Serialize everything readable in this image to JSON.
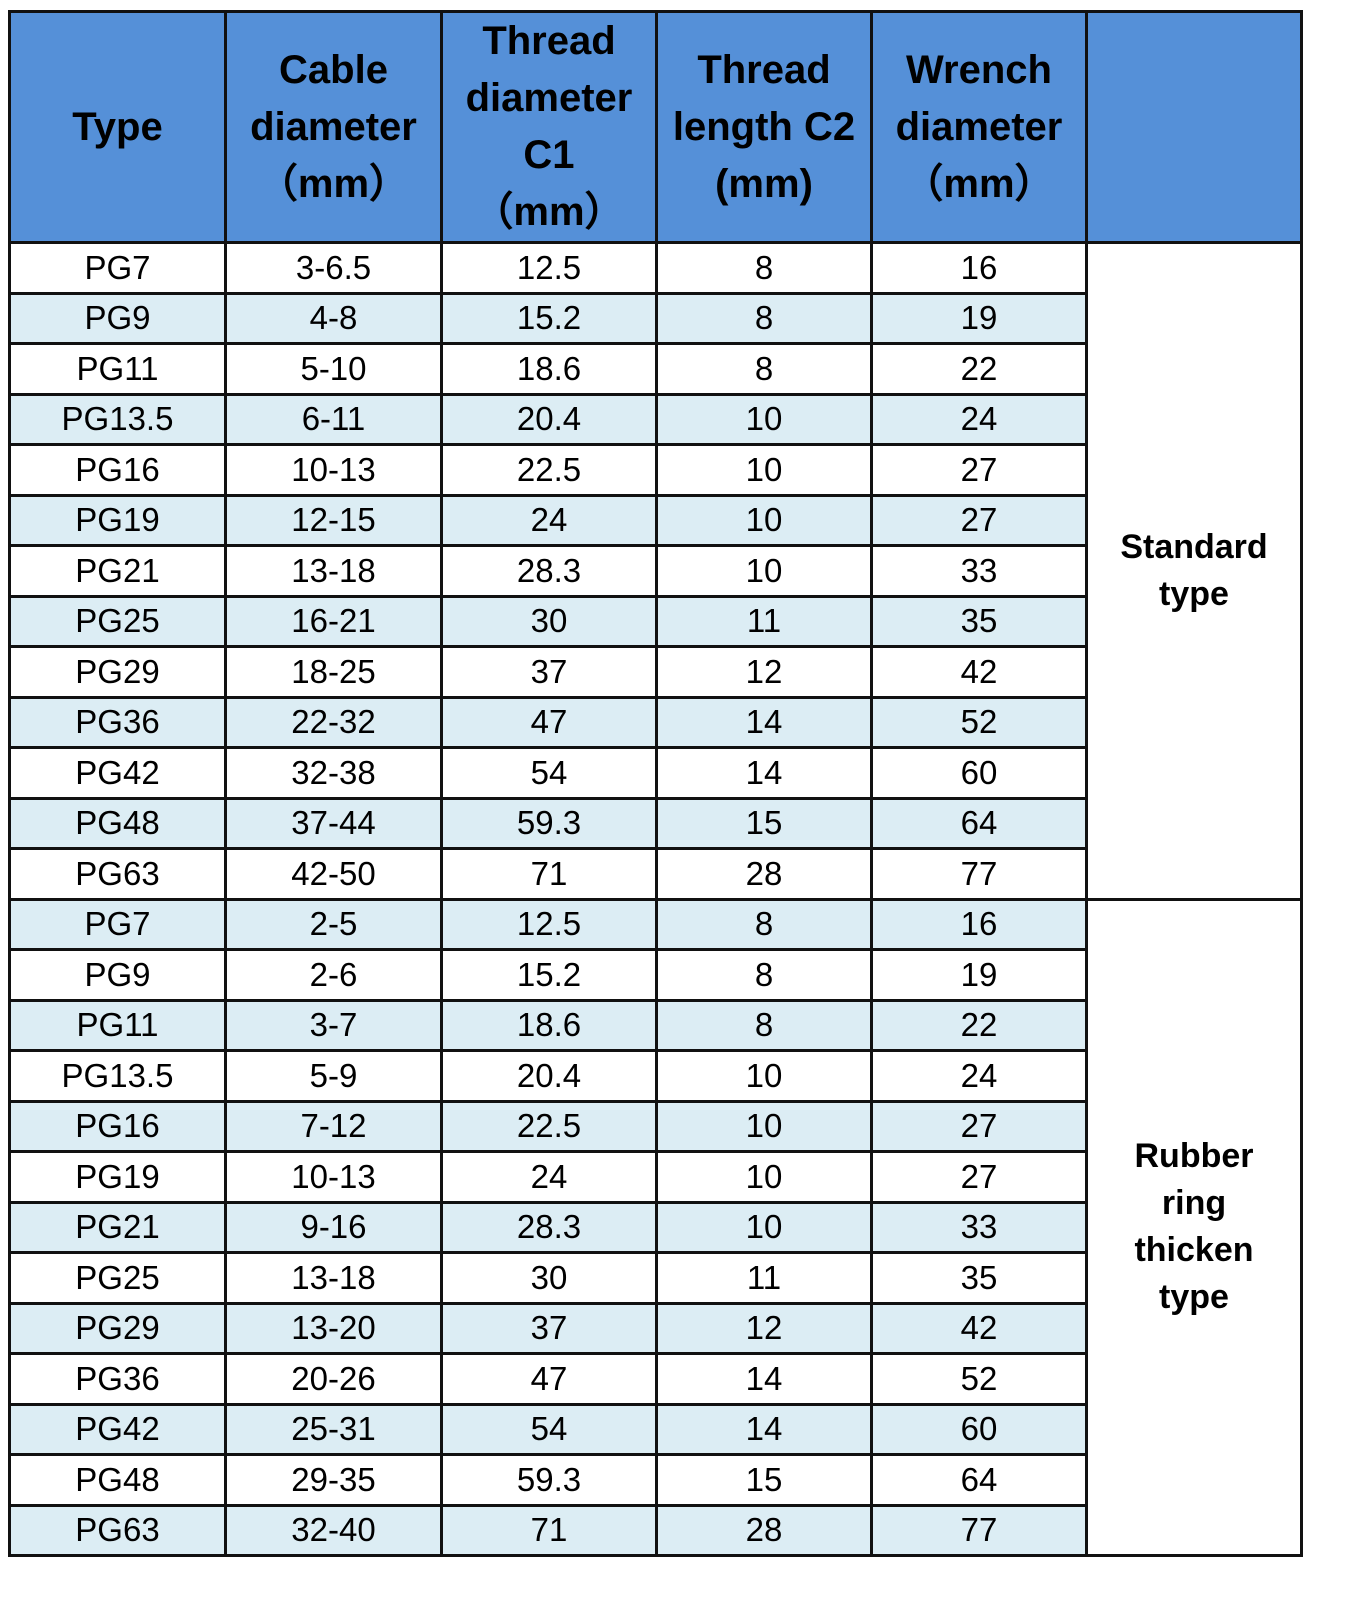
{
  "table": {
    "header": [
      [
        "Type"
      ],
      [
        "Cable",
        "diameter",
        "（mm）"
      ],
      [
        "Thread",
        "diameter",
        "C1",
        "（mm）"
      ],
      [
        "Thread",
        "length C2",
        "(mm)"
      ],
      [
        "Wrench",
        "diameter",
        "（mm）"
      ]
    ],
    "groups": [
      {
        "label": [
          "Standard",
          "type"
        ],
        "rows": [
          [
            "PG7",
            "3-6.5",
            "12.5",
            "8",
            "16"
          ],
          [
            "PG9",
            "4-8",
            "15.2",
            "8",
            "19"
          ],
          [
            "PG11",
            "5-10",
            "18.6",
            "8",
            "22"
          ],
          [
            "PG13.5",
            "6-11",
            "20.4",
            "10",
            "24"
          ],
          [
            "PG16",
            "10-13",
            "22.5",
            "10",
            "27"
          ],
          [
            "PG19",
            "12-15",
            "24",
            "10",
            "27"
          ],
          [
            "PG21",
            "13-18",
            "28.3",
            "10",
            "33"
          ],
          [
            "PG25",
            "16-21",
            "30",
            "11",
            "35"
          ],
          [
            "PG29",
            "18-25",
            "37",
            "12",
            "42"
          ],
          [
            "PG36",
            "22-32",
            "47",
            "14",
            "52"
          ],
          [
            "PG42",
            "32-38",
            "54",
            "14",
            "60"
          ],
          [
            "PG48",
            "37-44",
            "59.3",
            "15",
            "64"
          ],
          [
            "PG63",
            "42-50",
            "71",
            "28",
            "77"
          ]
        ]
      },
      {
        "label": [
          "Rubber",
          "ring",
          "thicken",
          "type"
        ],
        "rows": [
          [
            "PG7",
            "2-5",
            "12.5",
            "8",
            "16"
          ],
          [
            "PG9",
            "2-6",
            "15.2",
            "8",
            "19"
          ],
          [
            "PG11",
            "3-7",
            "18.6",
            "8",
            "22"
          ],
          [
            "PG13.5",
            "5-9",
            "20.4",
            "10",
            "24"
          ],
          [
            "PG16",
            "7-12",
            "22.5",
            "10",
            "27"
          ],
          [
            "PG19",
            "10-13",
            "24",
            "10",
            "27"
          ],
          [
            "PG21",
            "9-16",
            "28.3",
            "10",
            "33"
          ],
          [
            "PG25",
            "13-18",
            "30",
            "11",
            "35"
          ],
          [
            "PG29",
            "13-20",
            "37",
            "12",
            "42"
          ],
          [
            "PG36",
            "20-26",
            "47",
            "14",
            "52"
          ],
          [
            "PG42",
            "25-31",
            "54",
            "14",
            "60"
          ],
          [
            "PG48",
            "29-35",
            "59.3",
            "15",
            "64"
          ],
          [
            "PG63",
            "32-40",
            "71",
            "28",
            "77"
          ]
        ]
      }
    ]
  }
}
